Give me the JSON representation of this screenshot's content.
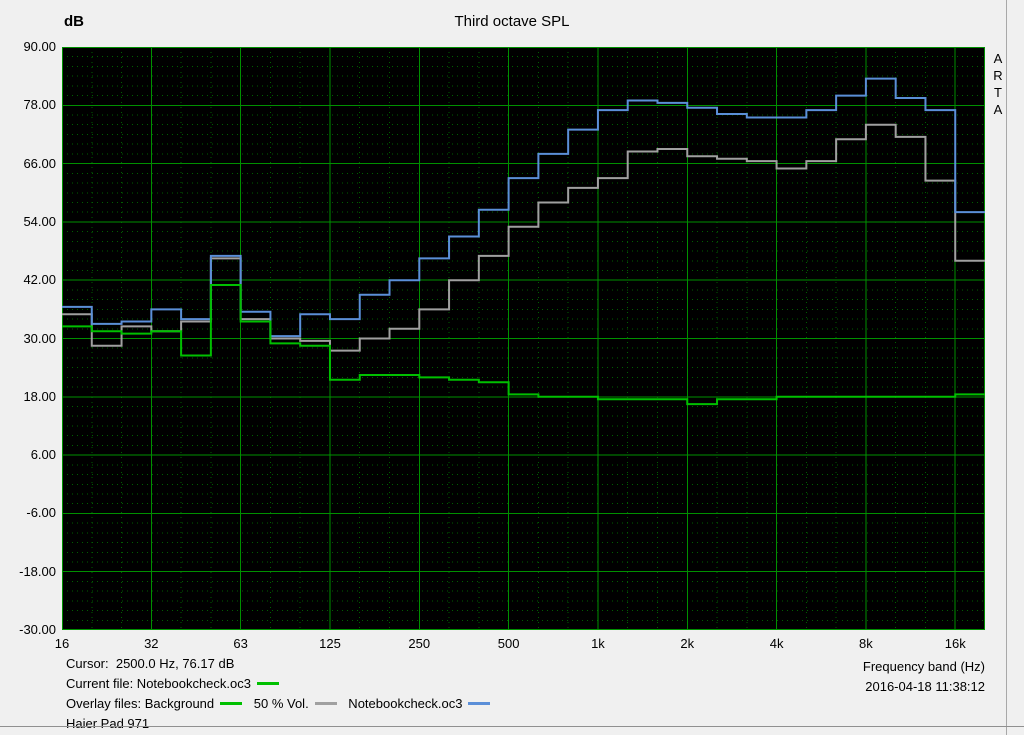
{
  "window": {
    "watermark": "ARTA"
  },
  "header": {
    "y_unit": "dB",
    "title": "Third octave SPL"
  },
  "footer": {
    "cursor": "Cursor:  2500.0 Hz, 76.17 dB",
    "current_file": "Current file: Notebookcheck.oc3",
    "overlay_label": "Overlay files:",
    "overlays": [
      {
        "label": "Background",
        "color": "#00c000"
      },
      {
        "label": "50 % Vol.",
        "color": "#a0a0a0"
      },
      {
        "label": "Notebookcheck.oc3",
        "color": "#5b8fd8"
      }
    ],
    "device": "Haier Pad 971",
    "x_axis_label": "Frequency band (Hz)",
    "datetime": "2016-04-18  11:38:12"
  },
  "chart_data": {
    "type": "line",
    "style": "third-octave-step",
    "title": "Third octave SPL",
    "xlabel": "Frequency band (Hz)",
    "ylabel": "dB",
    "ylim": [
      -30,
      90
    ],
    "y_major_step": 12,
    "y_minor_step": 2,
    "plot_background": "#000000",
    "grid_color_major": "#009000",
    "grid_color_minor": "#006000",
    "categories": [
      16,
      20,
      25,
      31.5,
      40,
      50,
      63,
      80,
      100,
      125,
      160,
      200,
      250,
      315,
      400,
      500,
      630,
      800,
      1000,
      1250,
      1600,
      2000,
      2500,
      3150,
      4000,
      5000,
      6300,
      8000,
      10000,
      12500,
      16000
    ],
    "x_ticks": [
      {
        "index": 0,
        "label": "16"
      },
      {
        "index": 3,
        "label": "32"
      },
      {
        "index": 6,
        "label": "63"
      },
      {
        "index": 9,
        "label": "125"
      },
      {
        "index": 12,
        "label": "250"
      },
      {
        "index": 15,
        "label": "500"
      },
      {
        "index": 18,
        "label": "1k"
      },
      {
        "index": 21,
        "label": "2k"
      },
      {
        "index": 24,
        "label": "4k"
      },
      {
        "index": 27,
        "label": "8k"
      },
      {
        "index": 30,
        "label": "16k"
      }
    ],
    "series": [
      {
        "name": "Background",
        "color": "#00c000",
        "values": [
          32.5,
          31.5,
          31,
          31.5,
          26.5,
          41,
          33.5,
          29,
          28.5,
          21.5,
          22.5,
          22.5,
          22,
          21.5,
          21,
          18.5,
          18,
          18,
          17.5,
          17.5,
          17.5,
          16.5,
          17.5,
          17.5,
          18,
          18,
          18,
          18,
          18,
          18,
          18.5
        ]
      },
      {
        "name": "50 % Vol.",
        "color": "#a0a0a0",
        "values": [
          35,
          28.5,
          32.5,
          31.5,
          33.5,
          46.5,
          34,
          30,
          29.5,
          27.5,
          30,
          32,
          36,
          42,
          47,
          53,
          58,
          61,
          63,
          68.5,
          69,
          67.5,
          67,
          66.5,
          65,
          66.5,
          71,
          74,
          71.5,
          62.5,
          46
        ]
      },
      {
        "name": "Notebookcheck.oc3",
        "color": "#5b8fd8",
        "values": [
          36.5,
          33,
          33.5,
          36,
          34,
          47,
          35.5,
          30.5,
          35,
          34,
          39,
          42,
          46.5,
          51,
          56.5,
          63,
          68,
          73,
          77,
          79,
          78.5,
          77.5,
          76.2,
          75.5,
          75.5,
          77,
          80,
          83.5,
          79.5,
          77,
          56
        ]
      }
    ],
    "cursor": {
      "frequency_hz": 2500.0,
      "level_db": 76.17
    }
  }
}
